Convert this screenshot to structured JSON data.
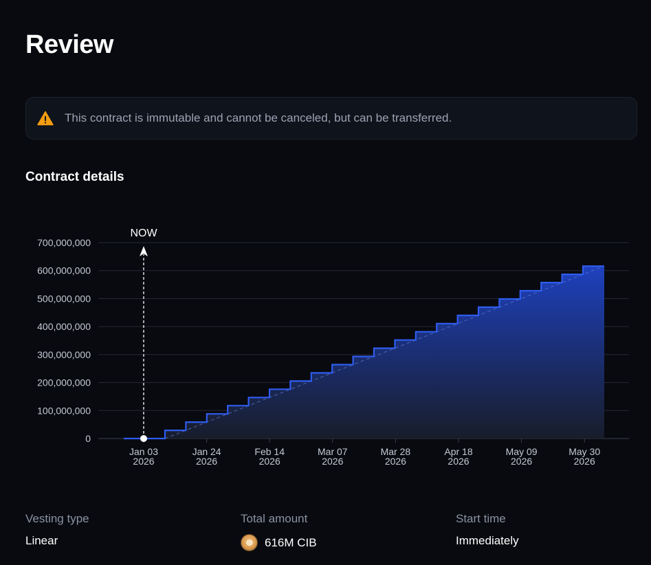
{
  "page": {
    "title": "Review"
  },
  "warning": {
    "icon": "warning-triangle-icon",
    "text": "This contract is immutable and cannot be canceled, but can be transferred."
  },
  "section": {
    "title": "Contract details"
  },
  "chart_data": {
    "type": "area",
    "step": true,
    "title": "",
    "xlabel": "",
    "ylabel": "",
    "now_label": "NOW",
    "ylim": [
      0,
      700000000
    ],
    "y_ticks": [
      "700,000,000",
      "600,000,000",
      "500,000,000",
      "400,000,000",
      "300,000,000",
      "200,000,000",
      "100,000,000",
      "0"
    ],
    "x_ticks": [
      {
        "line1": "Jan 03",
        "line2": "2026"
      },
      {
        "line1": "Jan 24",
        "line2": "2026"
      },
      {
        "line1": "Feb 14",
        "line2": "2026"
      },
      {
        "line1": "Mar 07",
        "line2": "2026"
      },
      {
        "line1": "Mar 28",
        "line2": "2026"
      },
      {
        "line1": "Apr 18",
        "line2": "2026"
      },
      {
        "line1": "May 09",
        "line2": "2026"
      },
      {
        "line1": "May 30",
        "line2": "2026"
      }
    ],
    "total": 616000000,
    "steps": 22,
    "colors": {
      "line": "#2f5cf0",
      "fill_top": "#1f44c8",
      "fill_bottom": "#1a1f2e",
      "grid": "#262b38"
    }
  },
  "details": {
    "vesting_type": {
      "label": "Vesting type",
      "value": "Linear"
    },
    "total_amount": {
      "label": "Total amount",
      "value": "616M CIB",
      "icon": "token-avatar-icon"
    },
    "start_time": {
      "label": "Start time",
      "value": "Immediately"
    }
  }
}
